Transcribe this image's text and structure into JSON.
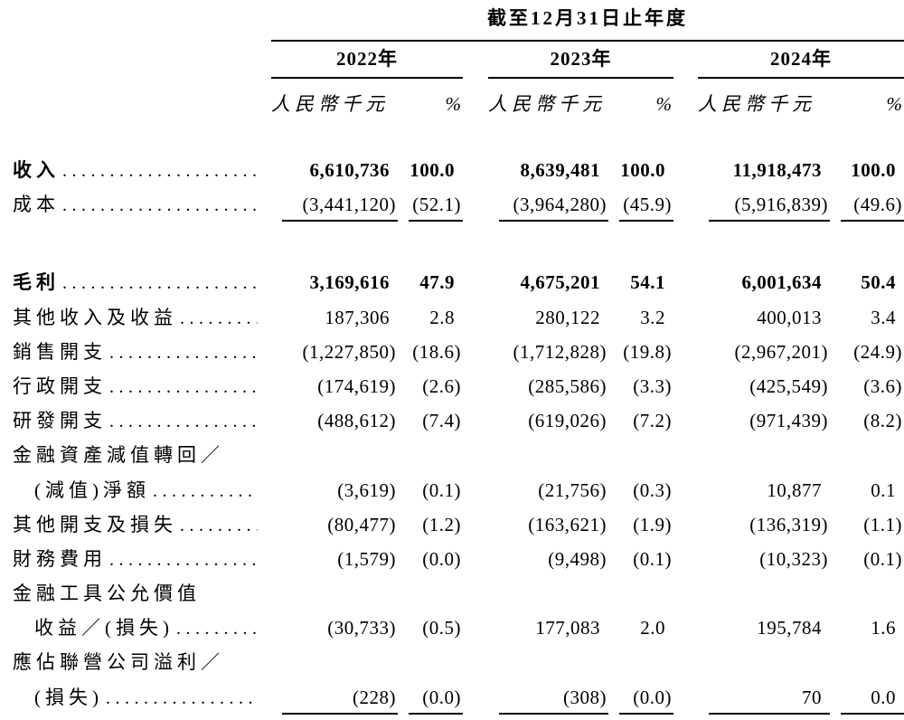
{
  "meta": {
    "background_color": "#ffffff",
    "text_color": "#000000"
  },
  "table": {
    "title": "截至12月31日止年度",
    "col_groups": [
      {
        "year": "2022年",
        "amount_header": "人民幣千元",
        "pct_header": "%"
      },
      {
        "year": "2023年",
        "amount_header": "人民幣千元",
        "pct_header": "%"
      },
      {
        "year": "2024年",
        "amount_header": "人民幣千元",
        "pct_header": "%"
      }
    ],
    "rows": [
      {
        "label": "收入",
        "bold": true,
        "dots": true,
        "values": [
          "6,610,736",
          "100.0",
          "8,639,481",
          "100.0",
          "11,918,473",
          "100.0"
        ]
      },
      {
        "label": "成本",
        "dots": true,
        "underline": true,
        "values": [
          "(3,441,120)",
          "(52.1)",
          "(3,964,280)",
          "(45.9)",
          "(5,916,839)",
          "(49.6)"
        ]
      },
      {
        "label": "毛利",
        "bold": true,
        "dots": true,
        "gap_before": true,
        "values": [
          "3,169,616",
          "47.9",
          "4,675,201",
          "54.1",
          "6,001,634",
          "50.4"
        ]
      },
      {
        "label": "其他收入及收益",
        "dots": true,
        "values": [
          "187,306",
          "2.8",
          "280,122",
          "3.2",
          "400,013",
          "3.4"
        ]
      },
      {
        "label": "銷售開支",
        "dots": true,
        "values": [
          "(1,227,850)",
          "(18.6)",
          "(1,712,828)",
          "(19.8)",
          "(2,967,201)",
          "(24.9)"
        ]
      },
      {
        "label": "行政開支",
        "dots": true,
        "values": [
          "(174,619)",
          "(2.6)",
          "(285,586)",
          "(3.3)",
          "(425,549)",
          "(3.6)"
        ]
      },
      {
        "label": "研發開支",
        "dots": true,
        "values": [
          "(488,612)",
          "(7.4)",
          "(619,026)",
          "(7.2)",
          "(971,439)",
          "(8.2)"
        ]
      },
      {
        "label": "金融資產減值轉回／"
      },
      {
        "label": "(減值)淨額",
        "indent": true,
        "dots": true,
        "values": [
          "(3,619)",
          "(0.1)",
          "(21,756)",
          "(0.3)",
          "10,877",
          "0.1"
        ]
      },
      {
        "label": "其他開支及損失",
        "dots": true,
        "values": [
          "(80,477)",
          "(1.2)",
          "(163,621)",
          "(1.9)",
          "(136,319)",
          "(1.1)"
        ]
      },
      {
        "label": "財務費用",
        "dots": true,
        "values": [
          "(1,579)",
          "(0.0)",
          "(9,498)",
          "(0.1)",
          "(10,323)",
          "(0.1)"
        ]
      },
      {
        "label": "金融工具公允價值"
      },
      {
        "label": "收益／(損失)",
        "indent": true,
        "dots": true,
        "values": [
          "(30,733)",
          "(0.5)",
          "177,083",
          "2.0",
          "195,784",
          "1.6"
        ]
      },
      {
        "label": "應佔聯營公司溢利／"
      },
      {
        "label": "(損失)",
        "indent": true,
        "dots": true,
        "underline": true,
        "values": [
          "(228)",
          "(0.0)",
          "(308)",
          "(0.0)",
          "70",
          "0.0"
        ]
      }
    ]
  }
}
